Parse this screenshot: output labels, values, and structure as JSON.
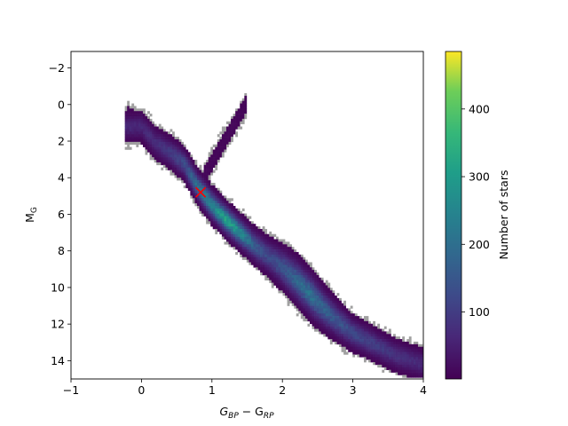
{
  "chart_data": {
    "type": "heatmap",
    "title": "",
    "xlabel": {
      "main": "G",
      "sub1": "BP",
      "op": " − G",
      "sub2": "RP"
    },
    "ylabel": {
      "main": "M",
      "sub": "G"
    },
    "xlim": [
      -1,
      4
    ],
    "ylim": [
      15,
      -2.9
    ],
    "y_inverted": true,
    "x_ticks": [
      "−1",
      "0",
      "1",
      "2",
      "3",
      "4"
    ],
    "x_tick_values": [
      -1,
      0,
      1,
      2,
      3,
      4
    ],
    "y_ticks": [
      "−2",
      "0",
      "2",
      "4",
      "6",
      "8",
      "10",
      "12",
      "14"
    ],
    "y_tick_values": [
      -2,
      0,
      2,
      4,
      6,
      8,
      10,
      12,
      14
    ],
    "colorbar": {
      "label": "Number of stars",
      "range": [
        1,
        485
      ],
      "ticks": [
        "100",
        "200",
        "300",
        "400"
      ],
      "tick_values": [
        100,
        200,
        300,
        400
      ],
      "colormap": "viridis"
    },
    "sparse_bin_color": "#a0a0a0",
    "marker": {
      "label": "x",
      "x": 0.84,
      "y": 4.8,
      "color": "#ff0000"
    },
    "density_ridge": {
      "description_points_x": [
        0.0,
        0.2,
        0.4,
        0.6,
        0.8,
        1.0,
        1.2,
        1.4,
        1.6,
        1.8,
        2.0,
        2.2,
        2.4,
        2.6,
        2.8,
        3.0,
        3.3,
        3.6,
        4.0
      ],
      "description_points_y": [
        1.2,
        2.1,
        2.6,
        3.2,
        4.5,
        5.5,
        6.3,
        7.0,
        7.7,
        8.3,
        8.9,
        9.6,
        10.4,
        11.2,
        11.9,
        12.5,
        13.1,
        13.7,
        14.2
      ],
      "peak_counts": [
        60,
        70,
        90,
        120,
        200,
        250,
        300,
        260,
        160,
        120,
        140,
        180,
        200,
        170,
        140,
        120,
        100,
        80,
        60
      ]
    },
    "grid": false
  }
}
